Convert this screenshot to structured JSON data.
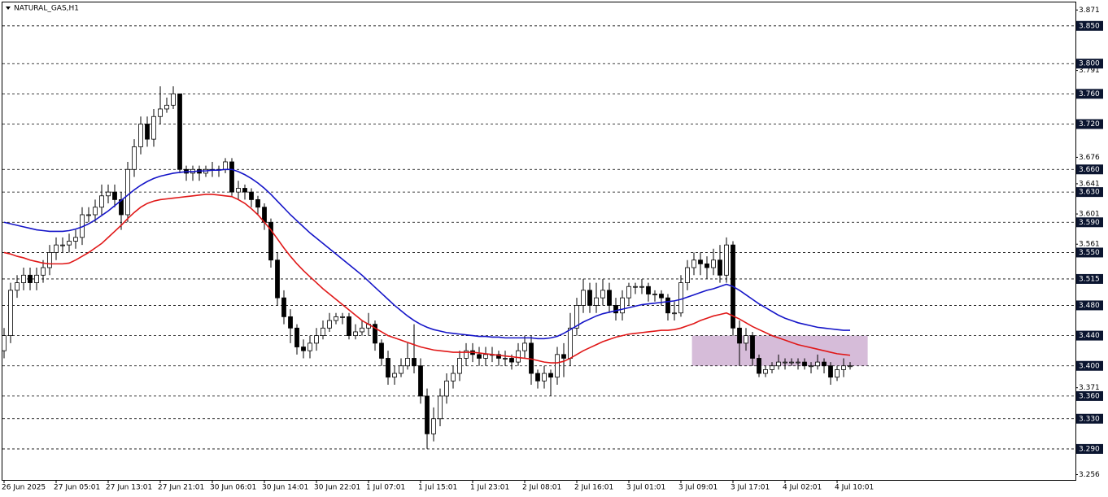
{
  "chart_data": {
    "type": "candlestick",
    "title": "NATURAL_GAS,H1",
    "categories": [
      "26 Jun 2025",
      null,
      null,
      null,
      null,
      null,
      null,
      null,
      "27 Jun 05:01",
      null,
      null,
      null,
      null,
      null,
      null,
      null,
      "27 Jun 13:01",
      null,
      null,
      null,
      null,
      null,
      null,
      null,
      "27 Jun 21:01",
      null,
      null,
      null,
      null,
      null,
      null,
      null,
      "30 Jun 06:01",
      null,
      null,
      null,
      null,
      null,
      null,
      null,
      "30 Jun 14:01",
      null,
      null,
      null,
      null,
      null,
      null,
      null,
      "30 Jun 22:01",
      null,
      null,
      null,
      null,
      null,
      null,
      null,
      "1 Jul 07:01",
      null,
      null,
      null,
      null,
      null,
      null,
      null,
      "1 Jul 15:01",
      null,
      null,
      null,
      null,
      null,
      null,
      null,
      "1 Jul 23:01",
      null,
      null,
      null,
      null,
      null,
      null,
      null,
      "2 Jul 08:01",
      null,
      null,
      null,
      null,
      null,
      null,
      null,
      "2 Jul 16:01",
      null,
      null,
      null,
      null,
      null,
      null,
      null,
      "3 Jul 01:01",
      null,
      null,
      null,
      null,
      null,
      null,
      null,
      "3 Jul 09:01",
      null,
      null,
      null,
      null,
      null,
      null,
      null,
      "3 Jul 17:01",
      null,
      null,
      null,
      null,
      null,
      null,
      null,
      "4 Jul 02:01",
      null,
      null,
      null,
      null,
      null,
      null,
      null,
      "4 Jul 10:01",
      null,
      null
    ],
    "open": [
      3.42,
      3.44,
      3.5,
      3.51,
      3.52,
      3.51,
      3.52,
      3.53,
      3.55,
      3.56,
      3.56,
      3.565,
      3.57,
      3.6,
      3.6,
      3.61,
      3.625,
      3.63,
      3.62,
      3.6,
      3.66,
      3.69,
      3.72,
      3.7,
      3.73,
      3.74,
      3.745,
      3.76,
      3.66,
      3.655,
      3.66,
      3.655,
      3.66,
      3.66,
      3.66,
      3.67,
      3.63,
      3.635,
      3.63,
      3.62,
      3.61,
      3.59,
      3.54,
      3.49,
      3.465,
      3.45,
      3.425,
      3.42,
      3.43,
      3.44,
      3.45,
      3.46,
      3.465,
      3.465,
      3.44,
      3.445,
      3.45,
      3.455,
      3.43,
      3.41,
      3.385,
      3.39,
      3.4,
      3.41,
      3.4,
      3.36,
      3.31,
      3.33,
      3.36,
      3.38,
      3.39,
      3.41,
      3.42,
      3.415,
      3.41,
      3.415,
      3.415,
      3.41,
      3.41,
      3.405,
      3.42,
      3.43,
      3.39,
      3.38,
      3.39,
      3.385,
      3.415,
      3.41,
      3.45,
      3.48,
      3.5,
      3.48,
      3.49,
      3.5,
      3.48,
      3.47,
      3.49,
      3.505,
      3.505,
      3.505,
      3.495,
      3.495,
      3.49,
      3.47,
      3.47,
      3.51,
      3.53,
      3.54,
      3.535,
      3.53,
      3.54,
      3.52,
      3.56,
      3.45,
      3.43,
      3.44,
      3.41,
      3.39,
      3.395,
      3.4,
      3.405,
      3.405,
      3.405,
      3.405,
      3.4,
      3.4,
      3.405,
      3.4,
      3.385,
      3.395,
      3.4
    ],
    "high": [
      3.45,
      3.51,
      3.52,
      3.53,
      3.53,
      3.53,
      3.54,
      3.56,
      3.57,
      3.57,
      3.575,
      3.58,
      3.61,
      3.61,
      3.62,
      3.64,
      3.64,
      3.64,
      3.63,
      3.67,
      3.7,
      3.73,
      3.73,
      3.74,
      3.77,
      3.755,
      3.77,
      3.76,
      3.665,
      3.665,
      3.665,
      3.665,
      3.67,
      3.665,
      3.675,
      3.675,
      3.645,
      3.64,
      3.635,
      3.625,
      3.615,
      3.595,
      3.55,
      3.5,
      3.475,
      3.455,
      3.435,
      3.44,
      3.45,
      3.46,
      3.47,
      3.47,
      3.47,
      3.47,
      3.455,
      3.46,
      3.47,
      3.46,
      3.435,
      3.42,
      3.4,
      3.41,
      3.43,
      3.455,
      3.41,
      3.37,
      3.345,
      3.37,
      3.39,
      3.4,
      3.42,
      3.43,
      3.43,
      3.425,
      3.425,
      3.425,
      3.42,
      3.42,
      3.415,
      3.43,
      3.44,
      3.44,
      3.395,
      3.4,
      3.395,
      3.425,
      3.43,
      3.47,
      3.49,
      3.515,
      3.51,
      3.51,
      3.515,
      3.51,
      3.49,
      3.5,
      3.51,
      3.51,
      3.515,
      3.51,
      3.5,
      3.5,
      3.495,
      3.485,
      3.52,
      3.54,
      3.55,
      3.55,
      3.545,
      3.555,
      3.56,
      3.57,
      3.565,
      3.46,
      3.45,
      3.445,
      3.415,
      3.4,
      3.405,
      3.415,
      3.41,
      3.41,
      3.41,
      3.41,
      3.405,
      3.415,
      3.41,
      3.405,
      3.4,
      3.41,
      3.405
    ],
    "low": [
      3.41,
      3.43,
      3.49,
      3.5,
      3.5,
      3.5,
      3.51,
      3.52,
      3.54,
      3.55,
      3.55,
      3.555,
      3.56,
      3.59,
      3.59,
      3.6,
      3.615,
      3.61,
      3.58,
      3.59,
      3.65,
      3.68,
      3.69,
      3.69,
      3.72,
      3.735,
      3.74,
      3.655,
      3.645,
      3.645,
      3.645,
      3.65,
      3.65,
      3.65,
      3.655,
      3.625,
      3.62,
      3.62,
      3.61,
      3.6,
      3.58,
      3.53,
      3.48,
      3.455,
      3.43,
      3.415,
      3.41,
      3.41,
      3.42,
      3.435,
      3.445,
      3.455,
      3.455,
      3.435,
      3.435,
      3.44,
      3.44,
      3.42,
      3.4,
      3.375,
      3.375,
      3.385,
      3.395,
      3.39,
      3.35,
      3.29,
      3.3,
      3.32,
      3.35,
      3.37,
      3.38,
      3.4,
      3.405,
      3.4,
      3.4,
      3.405,
      3.4,
      3.4,
      3.395,
      3.4,
      3.41,
      3.375,
      3.37,
      3.37,
      3.36,
      3.375,
      3.385,
      3.4,
      3.44,
      3.47,
      3.47,
      3.47,
      3.48,
      3.47,
      3.46,
      3.46,
      3.48,
      3.495,
      3.495,
      3.485,
      3.485,
      3.48,
      3.46,
      3.46,
      3.465,
      3.5,
      3.52,
      3.52,
      3.515,
      3.52,
      3.51,
      3.51,
      3.44,
      3.4,
      3.42,
      3.4,
      3.385,
      3.385,
      3.39,
      3.395,
      3.395,
      3.4,
      3.395,
      3.395,
      3.39,
      3.395,
      3.39,
      3.375,
      3.38,
      3.385,
      3.395
    ],
    "close": [
      3.44,
      3.5,
      3.51,
      3.52,
      3.51,
      3.52,
      3.53,
      3.55,
      3.56,
      3.56,
      3.565,
      3.57,
      3.6,
      3.6,
      3.61,
      3.625,
      3.63,
      3.62,
      3.6,
      3.66,
      3.69,
      3.72,
      3.7,
      3.73,
      3.74,
      3.745,
      3.76,
      3.66,
      3.655,
      3.66,
      3.655,
      3.66,
      3.66,
      3.66,
      3.67,
      3.63,
      3.635,
      3.63,
      3.62,
      3.61,
      3.59,
      3.54,
      3.49,
      3.465,
      3.45,
      3.425,
      3.42,
      3.43,
      3.44,
      3.45,
      3.46,
      3.465,
      3.465,
      3.44,
      3.445,
      3.45,
      3.455,
      3.43,
      3.41,
      3.385,
      3.39,
      3.4,
      3.41,
      3.4,
      3.36,
      3.31,
      3.33,
      3.36,
      3.38,
      3.39,
      3.41,
      3.42,
      3.415,
      3.41,
      3.415,
      3.415,
      3.41,
      3.41,
      3.405,
      3.42,
      3.43,
      3.39,
      3.38,
      3.39,
      3.385,
      3.415,
      3.41,
      3.45,
      3.48,
      3.5,
      3.48,
      3.49,
      3.5,
      3.48,
      3.47,
      3.49,
      3.505,
      3.505,
      3.505,
      3.495,
      3.495,
      3.49,
      3.47,
      3.47,
      3.51,
      3.53,
      3.54,
      3.535,
      3.53,
      3.54,
      3.52,
      3.56,
      3.45,
      3.43,
      3.44,
      3.41,
      3.39,
      3.395,
      3.4,
      3.405,
      3.405,
      3.405,
      3.405,
      3.4,
      3.4,
      3.405,
      3.4,
      3.385,
      3.395,
      3.4,
      3.4
    ],
    "up_color": "#ffffff",
    "down_color": "#000000",
    "series": [
      {
        "color": "#1515c8",
        "values": [
          3.59,
          3.588,
          3.586,
          3.584,
          3.582,
          3.58,
          3.579,
          3.578,
          3.578,
          3.578,
          3.579,
          3.581,
          3.584,
          3.588,
          3.593,
          3.599,
          3.605,
          3.612,
          3.619,
          3.626,
          3.633,
          3.639,
          3.644,
          3.648,
          3.651,
          3.653,
          3.655,
          3.656,
          3.657,
          3.657,
          3.658,
          3.658,
          3.659,
          3.659,
          3.66,
          3.66,
          3.657,
          3.653,
          3.648,
          3.642,
          3.635,
          3.627,
          3.618,
          3.609,
          3.6,
          3.592,
          3.584,
          3.576,
          3.569,
          3.562,
          3.555,
          3.548,
          3.541,
          3.534,
          3.527,
          3.52,
          3.512,
          3.504,
          3.496,
          3.488,
          3.48,
          3.473,
          3.466,
          3.46,
          3.455,
          3.451,
          3.448,
          3.446,
          3.444,
          3.443,
          3.442,
          3.441,
          3.44,
          3.439,
          3.439,
          3.438,
          3.438,
          3.437,
          3.437,
          3.437,
          3.437,
          3.437,
          3.436,
          3.436,
          3.437,
          3.439,
          3.443,
          3.448,
          3.453,
          3.458,
          3.462,
          3.466,
          3.469,
          3.471,
          3.473,
          3.475,
          3.477,
          3.479,
          3.481,
          3.482,
          3.483,
          3.484,
          3.485,
          3.486,
          3.488,
          3.491,
          3.494,
          3.497,
          3.5,
          3.502,
          3.505,
          3.508,
          3.505,
          3.5,
          3.494,
          3.488,
          3.482,
          3.477,
          3.472,
          3.467,
          3.463,
          3.46,
          3.457,
          3.455,
          3.453,
          3.451,
          3.45,
          3.449,
          3.448,
          3.447,
          3.447
        ]
      },
      {
        "color": "#e01818",
        "values": [
          3.55,
          3.548,
          3.545,
          3.543,
          3.54,
          3.538,
          3.536,
          3.535,
          3.535,
          3.535,
          3.536,
          3.54,
          3.545,
          3.55,
          3.556,
          3.562,
          3.57,
          3.578,
          3.586,
          3.595,
          3.603,
          3.61,
          3.615,
          3.618,
          3.62,
          3.621,
          3.622,
          3.623,
          3.624,
          3.625,
          3.626,
          3.627,
          3.627,
          3.626,
          3.625,
          3.624,
          3.62,
          3.615,
          3.608,
          3.6,
          3.59,
          3.58,
          3.568,
          3.556,
          3.545,
          3.535,
          3.526,
          3.518,
          3.51,
          3.502,
          3.495,
          3.488,
          3.481,
          3.474,
          3.467,
          3.46,
          3.455,
          3.45,
          3.445,
          3.44,
          3.437,
          3.434,
          3.431,
          3.428,
          3.425,
          3.423,
          3.421,
          3.42,
          3.419,
          3.418,
          3.418,
          3.418,
          3.418,
          3.417,
          3.416,
          3.415,
          3.414,
          3.413,
          3.412,
          3.411,
          3.41,
          3.409,
          3.407,
          3.405,
          3.404,
          3.404,
          3.406,
          3.41,
          3.415,
          3.42,
          3.424,
          3.428,
          3.432,
          3.435,
          3.438,
          3.44,
          3.442,
          3.443,
          3.444,
          3.445,
          3.446,
          3.447,
          3.447,
          3.448,
          3.45,
          3.453,
          3.456,
          3.46,
          3.463,
          3.466,
          3.468,
          3.47,
          3.466,
          3.462,
          3.457,
          3.452,
          3.448,
          3.444,
          3.44,
          3.437,
          3.434,
          3.431,
          3.428,
          3.426,
          3.424,
          3.422,
          3.42,
          3.418,
          3.416,
          3.415,
          3.414
        ]
      }
    ],
    "ylim": [
      3.249,
      3.881
    ],
    "yticks": [
      3.871,
      3.791,
      3.676,
      3.641,
      3.601,
      3.561,
      3.371,
      3.256
    ],
    "levels": [
      {
        "value": 3.85,
        "label": "3.850"
      },
      {
        "value": 3.8,
        "label": "3.800"
      },
      {
        "value": 3.76,
        "label": "3.760"
      },
      {
        "value": 3.72,
        "label": "3.720"
      },
      {
        "value": 3.66,
        "label": "3.660"
      },
      {
        "value": 3.63,
        "label": "3.630"
      },
      {
        "value": 3.59,
        "label": "3.590"
      },
      {
        "value": 3.55,
        "label": "3.550"
      },
      {
        "value": 3.515,
        "label": "3.515"
      },
      {
        "value": 3.48,
        "label": "3.480"
      },
      {
        "value": 3.44,
        "label": "3.440"
      },
      {
        "value": 3.4,
        "label": "3.400"
      },
      {
        "value": 3.36,
        "label": "3.360"
      },
      {
        "value": 3.33,
        "label": "3.330"
      },
      {
        "value": 3.29,
        "label": "3.290"
      }
    ],
    "zone": {
      "low": 3.4,
      "high": 3.44,
      "color": "#d6bcd9"
    }
  }
}
